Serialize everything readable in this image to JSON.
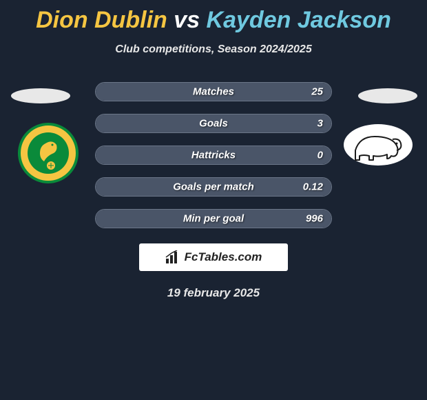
{
  "title": {
    "player1": "Dion Dublin",
    "player2": "Kayden Jackson",
    "color1": "#f5c542",
    "color2": "#6fc9e0"
  },
  "subtitle": "Club competitions, Season 2024/2025",
  "stats": [
    {
      "label": "Matches",
      "right_value": "25",
      "fill_pct": 100
    },
    {
      "label": "Goals",
      "right_value": "3",
      "fill_pct": 100
    },
    {
      "label": "Hattricks",
      "right_value": "0",
      "fill_pct": 100
    },
    {
      "label": "Goals per match",
      "right_value": "0.12",
      "fill_pct": 100
    },
    {
      "label": "Min per goal",
      "right_value": "996",
      "fill_pct": 100
    }
  ],
  "brand": {
    "text": "FcTables.com"
  },
  "date": "19 february 2025",
  "team_left": {
    "name": "norwich-city",
    "badge_bg": "#f5c542",
    "badge_accent": "#0a8a3a"
  },
  "team_right": {
    "name": "derby-county",
    "badge_bg": "#ffffff",
    "badge_accent": "#1a1a1a"
  },
  "colors": {
    "page_bg": "#1a2332",
    "pill_border": "#6b7688",
    "pill_fill": "#4a5568",
    "text_light": "#e8e8e8"
  }
}
